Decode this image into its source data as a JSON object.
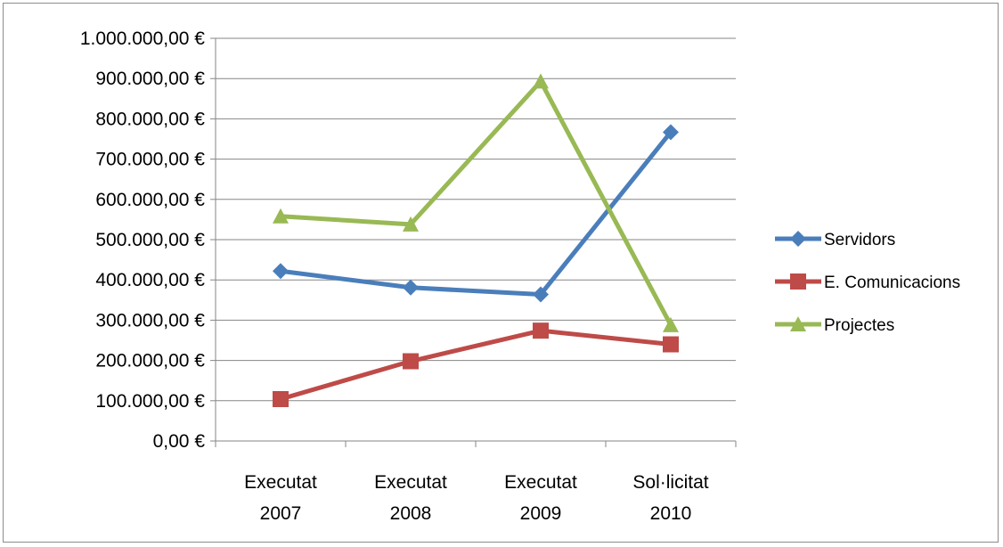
{
  "chart_data": {
    "type": "line",
    "categories": [
      [
        "Executat",
        "2007"
      ],
      [
        "Executat",
        "2008"
      ],
      [
        "Executat",
        "2009"
      ],
      [
        "Sol·licitat",
        "2010"
      ]
    ],
    "series": [
      {
        "name": "Servidors",
        "values": [
          422000,
          381000,
          364000,
          767000
        ],
        "color": "#4a7ebb",
        "marker": "diamond"
      },
      {
        "name": "E. Comunicacions",
        "values": [
          104000,
          198000,
          274000,
          240000
        ],
        "color": "#be4b48",
        "marker": "square"
      },
      {
        "name": "Projectes",
        "values": [
          558000,
          538000,
          893000,
          288000
        ],
        "color": "#98b954",
        "marker": "triangle"
      }
    ],
    "y_ticks": [
      "0,00 €",
      "100.000,00 €",
      "200.000,00 €",
      "300.000,00 €",
      "400.000,00 €",
      "500.000,00 €",
      "600.000,00 €",
      "700.000,00 €",
      "800.000,00 €",
      "900.000,00 €",
      "1.000.000,00 €"
    ],
    "ylim": [
      0,
      1000000
    ],
    "y_step": 100000,
    "grid": true,
    "legend": "right",
    "title": "",
    "xlabel": "",
    "ylabel": ""
  }
}
